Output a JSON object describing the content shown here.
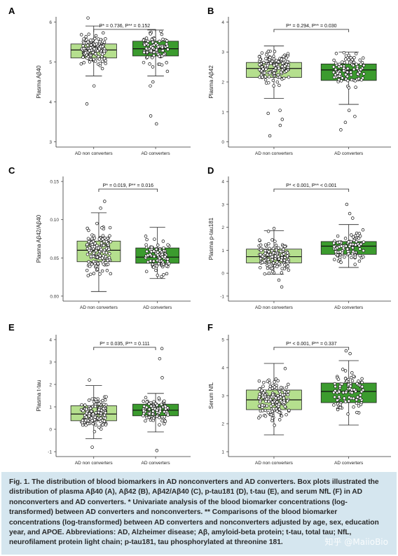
{
  "caption": "Fig. 1. The distribution of blood biomarkers in AD nonconverters and AD converters. Box plots illustrated the distribution of plasma Aβ40 (A), Aβ42 (B), Aβ42/Aβ40 (C), p-tau181 (D), t-tau (E), and serum NfL (F) in AD nonconverters and AD converters. * Univariate analysis of the blood biomarker concentrations (log-transformed) between AD converters and nonconverters. ** Comparisons of the blood biomarker concentrations (log-transformed) between AD converters and nonconverters adjusted by age, sex, education year, and APOE. Abbreviations: AD, Alzheimer disease; Aβ, amyloid-beta protein; t-tau, total tau; NfL, neurofilament protein light chain; p-tau181, tau phosphorylated at threonine 181.",
  "watermark": "知乎 @MaiioBio",
  "colors": {
    "nonconverters": "#b5df8e",
    "converters": "#3b9b2e",
    "line": "#222222"
  },
  "chart_data": [
    {
      "panel": "A",
      "type": "box",
      "ylabel": "Plasma Aβ40",
      "categories": [
        "AD non converters",
        "AD converters"
      ],
      "ylim": [
        3,
        6
      ],
      "yticks": [
        3,
        4,
        5,
        6
      ],
      "annotation": "P* = 0.736, P** = 0.152",
      "boxes": [
        {
          "q1": 5.1,
          "median": 5.3,
          "q3": 5.45,
          "whisker_low": 4.65,
          "whisker_high": 5.9
        },
        {
          "q1": 5.15,
          "median": 5.33,
          "q3": 5.52,
          "whisker_low": 4.65,
          "whisker_high": 5.8
        }
      ],
      "outliers": [
        [
          3.95,
          4.4,
          6.1
        ],
        [
          3.45,
          3.65,
          4.4,
          4.5
        ]
      ]
    },
    {
      "panel": "B",
      "type": "box",
      "ylabel": "Plasma Aβ42",
      "categories": [
        "AD non converters",
        "AD converters"
      ],
      "ylim": [
        0,
        4
      ],
      "yticks": [
        0,
        1,
        2,
        3,
        4
      ],
      "annotation": "P* = 0.294, P** = 0.030",
      "boxes": [
        {
          "q1": 2.15,
          "median": 2.45,
          "q3": 2.65,
          "whisker_low": 1.45,
          "whisker_high": 3.2
        },
        {
          "q1": 2.05,
          "median": 2.4,
          "q3": 2.6,
          "whisker_low": 1.25,
          "whisker_high": 3.0
        }
      ],
      "outliers": [
        [
          0.2,
          0.55,
          0.75,
          0.95,
          1.05
        ],
        [
          0.4,
          0.65,
          0.85,
          1.05
        ]
      ]
    },
    {
      "panel": "C",
      "type": "box",
      "ylabel": "Plasma Aβ42/Aβ40",
      "categories": [
        "AD non converters",
        "AD converters"
      ],
      "ylim": [
        0,
        0.15
      ],
      "yticks": [
        0.0,
        0.05,
        0.1,
        0.15
      ],
      "ytick_labels": [
        "0.00",
        "0.05",
        "0.10",
        "0.15"
      ],
      "annotation": "P* = 0.019, P** = 0.016",
      "boxes": [
        {
          "q1": 0.045,
          "median": 0.06,
          "q3": 0.072,
          "whisker_low": 0.006,
          "whisker_high": 0.109
        },
        {
          "q1": 0.043,
          "median": 0.051,
          "q3": 0.063,
          "whisker_low": 0.023,
          "whisker_high": 0.09
        }
      ],
      "outliers": [
        [
          0.115,
          0.124
        ],
        []
      ]
    },
    {
      "panel": "D",
      "type": "box",
      "ylabel": "Plasma p-tau181",
      "categories": [
        "AD non converters",
        "AD converters"
      ],
      "ylim": [
        -1,
        4
      ],
      "yticks": [
        -1,
        0,
        1,
        2,
        3,
        4
      ],
      "annotation": "P* < 0.001, P** < 0.001",
      "boxes": [
        {
          "q1": 0.45,
          "median": 0.72,
          "q3": 1.05,
          "whisker_low": -0.05,
          "whisker_high": 1.85
        },
        {
          "q1": 0.82,
          "median": 1.18,
          "q3": 1.38,
          "whisker_low": 0.25,
          "whisker_high": 2.12
        }
      ],
      "outliers": [
        [
          -0.6,
          -0.3,
          1.95
        ],
        [
          2.4,
          2.6,
          3.0
        ]
      ]
    },
    {
      "panel": "E",
      "type": "box",
      "ylabel": "Plasma t-tau",
      "categories": [
        "AD non converters",
        "AD converters"
      ],
      "ylim": [
        -1,
        4
      ],
      "yticks": [
        -1,
        0,
        1,
        2,
        3,
        4
      ],
      "annotation": "P* = 0.035, P** = 0.111",
      "boxes": [
        {
          "q1": 0.38,
          "median": 0.68,
          "q3": 1.05,
          "whisker_low": -0.42,
          "whisker_high": 1.95
        },
        {
          "q1": 0.6,
          "median": 0.85,
          "q3": 1.12,
          "whisker_low": -0.12,
          "whisker_high": 1.6
        }
      ],
      "outliers": [
        [
          -0.8,
          2.2
        ],
        [
          -0.95,
          2.3,
          3.15,
          3.6
        ]
      ]
    },
    {
      "panel": "F",
      "type": "box",
      "ylabel": "Serum NfL",
      "categories": [
        "AD non converters",
        "AD converters"
      ],
      "ylim": [
        1,
        5
      ],
      "yticks": [
        1,
        2,
        3,
        4,
        5
      ],
      "annotation": "P* < 0.001, P** = 0.337",
      "boxes": [
        {
          "q1": 2.5,
          "median": 2.85,
          "q3": 3.2,
          "whisker_low": 1.6,
          "whisker_high": 4.15
        },
        {
          "q1": 2.75,
          "median": 3.15,
          "q3": 3.45,
          "whisker_low": 1.95,
          "whisker_high": 4.25
        }
      ],
      "outliers": [
        [],
        [
          4.5,
          4.6
        ]
      ]
    }
  ]
}
